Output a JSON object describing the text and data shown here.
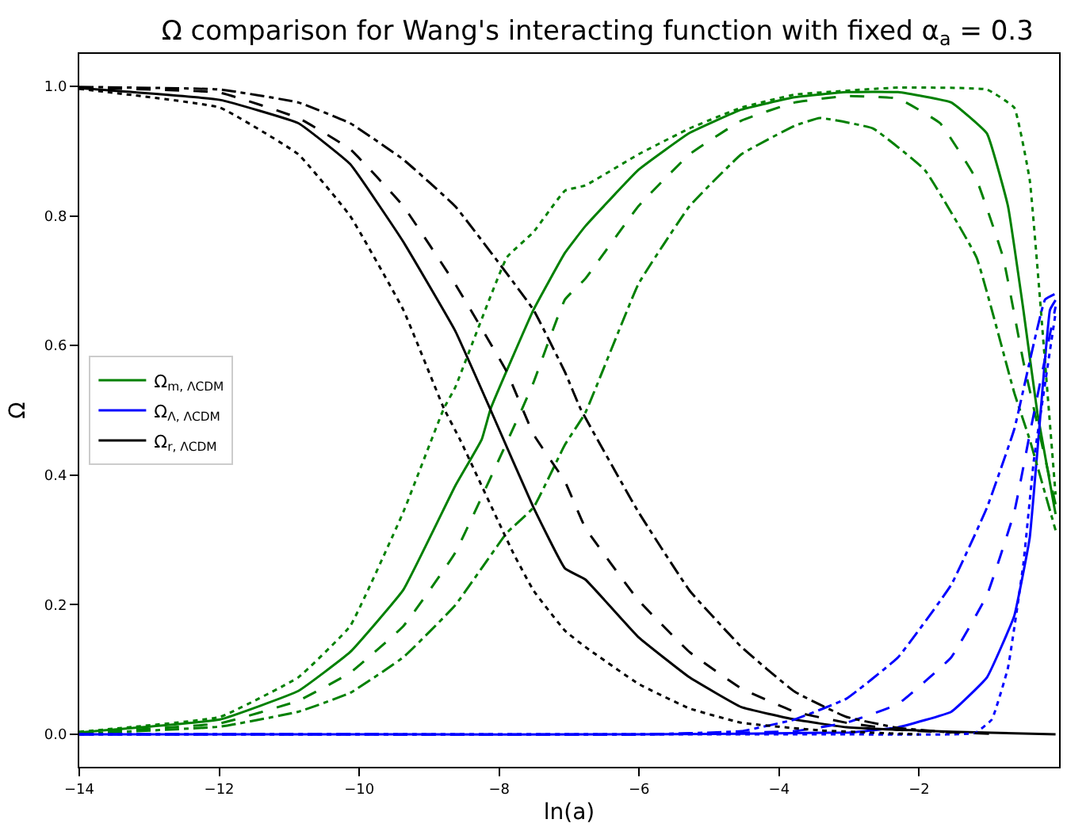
{
  "chart_data": {
    "type": "line",
    "title": "Ω comparison for Wang's interacting function with fixed α$_{a}$ = 0.3",
    "xlabel": "ln(a)",
    "ylabel": "Ω",
    "xlim": [
      -14,
      0
    ],
    "ylim": [
      -0.05,
      1.05
    ],
    "xticks": [
      {
        "value": -14,
        "label": "−14"
      },
      {
        "value": -12,
        "label": "−12"
      },
      {
        "value": -10,
        "label": "−10"
      },
      {
        "value": -8,
        "label": "−8"
      },
      {
        "value": -6,
        "label": "−6"
      },
      {
        "value": -4,
        "label": "−4"
      },
      {
        "value": -2,
        "label": "−2"
      }
    ],
    "yticks": [
      {
        "value": 0,
        "label": "0.0"
      },
      {
        "value": 0.2,
        "label": "0.2"
      },
      {
        "value": 0.4,
        "label": "0.4"
      },
      {
        "value": 0.6,
        "label": "0.6"
      },
      {
        "value": 0.8,
        "label": "0.8"
      },
      {
        "value": 1.0,
        "label": "1.0"
      }
    ],
    "legend": "left",
    "marker": "none",
    "series": [
      {
        "name": "Ω$_{m, ΛCDM}$",
        "color": "#008000",
        "line_style": "solid",
        "x": [
          -14,
          -11.99,
          -10.87,
          -10.13,
          -9.37,
          -8.63,
          -8.25,
          -8.12,
          -7.51,
          -7.06,
          -6.77,
          -6.01,
          -5.28,
          -4.54,
          -3.78,
          -3.04,
          -2.3,
          -1.54,
          -1.03,
          -0.73,
          -0.51,
          -0.31,
          -0.05
        ],
        "values": [
          0.003,
          0.023,
          0.067,
          0.127,
          0.223,
          0.383,
          0.455,
          0.503,
          0.655,
          0.743,
          0.784,
          0.871,
          0.928,
          0.964,
          0.983,
          0.991,
          0.991,
          0.975,
          0.927,
          0.815,
          0.655,
          0.496,
          0.34
        ]
      },
      {
        "name": "Ω$_{Λ, ΛCDM}$",
        "color": "#0000ff",
        "line_style": "solid",
        "x": [
          -14,
          -10,
          -6,
          -3.0,
          -2.3,
          -1.54,
          -1.03,
          -0.64,
          -0.42,
          -0.29,
          -0.13,
          -0.05
        ],
        "values": [
          0,
          0,
          0,
          0.003,
          0.011,
          0.035,
          0.088,
          0.183,
          0.303,
          0.463,
          0.655,
          0.67
        ]
      },
      {
        "name": "Ω$_{r, ΛCDM}$",
        "color": "#000000",
        "line_style": "solid",
        "x": [
          -14,
          -11.99,
          -10.87,
          -10.13,
          -9.37,
          -8.63,
          -8.12,
          -7.51,
          -7.06,
          -6.77,
          -6.01,
          -5.28,
          -4.54,
          -3.78,
          -3.04,
          -1.54,
          -0.05
        ],
        "values": [
          0.997,
          0.979,
          0.943,
          0.88,
          0.76,
          0.623,
          0.5,
          0.35,
          0.256,
          0.239,
          0.15,
          0.088,
          0.042,
          0.023,
          0.011,
          0.004,
          0
        ]
      },
      {
        "color": "#008000",
        "line_style": "dashed",
        "x": [
          -14,
          -11.99,
          -10.87,
          -10.13,
          -9.37,
          -8.63,
          -7.67,
          -7.51,
          -7.06,
          -6.77,
          -6.01,
          -5.28,
          -4.54,
          -3.78,
          -3.04,
          -2.3,
          -1.7,
          -1.18,
          -0.8,
          -0.51,
          -0.05
        ],
        "values": [
          0.002,
          0.017,
          0.052,
          0.095,
          0.167,
          0.28,
          0.503,
          0.543,
          0.671,
          0.703,
          0.815,
          0.895,
          0.947,
          0.975,
          0.985,
          0.981,
          0.943,
          0.856,
          0.736,
          0.575,
          0.355
        ]
      },
      {
        "color": "#008000",
        "line_style": "dashdot",
        "x": [
          -14,
          -11.99,
          -10.87,
          -10.13,
          -9.37,
          -8.63,
          -7.89,
          -7.51,
          -7.06,
          -6.77,
          -6.01,
          -5.28,
          -4.54,
          -3.78,
          -3.42,
          -2.66,
          -1.92,
          -1.18,
          -0.64,
          -0.42,
          -0.05
        ],
        "values": [
          0.001,
          0.012,
          0.035,
          0.064,
          0.119,
          0.199,
          0.311,
          0.35,
          0.447,
          0.496,
          0.695,
          0.815,
          0.895,
          0.939,
          0.951,
          0.935,
          0.871,
          0.736,
          0.527,
          0.455,
          0.315
        ]
      },
      {
        "color": "#008000",
        "line_style": "dotted",
        "x": [
          -14,
          -11.99,
          -10.87,
          -10.13,
          -9.37,
          -8.79,
          -8.63,
          -7.89,
          -7.51,
          -7.06,
          -6.77,
          -6.01,
          -5.28,
          -4.54,
          -3.78,
          -2.3,
          -1.03,
          -0.64,
          -0.42,
          -0.29,
          -0.05
        ],
        "values": [
          0.004,
          0.027,
          0.088,
          0.167,
          0.343,
          0.503,
          0.535,
          0.736,
          0.775,
          0.839,
          0.847,
          0.895,
          0.935,
          0.967,
          0.987,
          0.998,
          0.995,
          0.967,
          0.856,
          0.695,
          0.37
        ]
      },
      {
        "color": "#0000ff",
        "line_style": "dashed",
        "x": [
          -14,
          -10,
          -6,
          -3.78,
          -3.04,
          -2.3,
          -1.54,
          -1.03,
          -0.64,
          -0.42,
          -0.05
        ],
        "values": [
          0,
          0,
          0,
          0.005,
          0.018,
          0.047,
          0.119,
          0.215,
          0.343,
          0.463,
          0.66
        ]
      },
      {
        "color": "#0000ff",
        "line_style": "dashdot",
        "x": [
          -14,
          -10,
          -6,
          -4.54,
          -3.78,
          -3.04,
          -2.3,
          -1.54,
          -1.03,
          -0.64,
          -0.2,
          -0.05
        ],
        "values": [
          0,
          0,
          0,
          0.005,
          0.023,
          0.055,
          0.119,
          0.231,
          0.35,
          0.471,
          0.671,
          0.68
        ]
      },
      {
        "color": "#0000ff",
        "line_style": "dotted",
        "x": [
          -14,
          -10,
          -6,
          -3,
          -1.6,
          -1.2,
          -0.96,
          -0.73,
          -0.51,
          -0.36,
          -0.05
        ],
        "values": [
          0,
          0,
          0,
          0,
          0,
          0.002,
          0.023,
          0.103,
          0.263,
          0.423,
          0.65
        ]
      },
      {
        "color": "#000000",
        "line_style": "dashed",
        "x": [
          -14,
          -11.99,
          -10.87,
          -10.13,
          -9.37,
          -8.63,
          -7.89,
          -7.51,
          -7.06,
          -6.77,
          -6.01,
          -5.28,
          -4.54,
          -3.78,
          -3.04,
          -2.3,
          -1.0
        ],
        "values": [
          0.998,
          0.99,
          0.951,
          0.903,
          0.815,
          0.695,
          0.559,
          0.463,
          0.39,
          0.319,
          0.207,
          0.127,
          0.071,
          0.035,
          0.018,
          0.007,
          0.001
        ]
      },
      {
        "color": "#000000",
        "line_style": "dashdot",
        "x": [
          -14,
          -11.99,
          -10.87,
          -10.13,
          -9.37,
          -8.63,
          -7.89,
          -7.51,
          -7.06,
          -6.84,
          -6.01,
          -5.28,
          -4.54,
          -3.78,
          -3.04,
          -2.3,
          -1.54
        ],
        "values": [
          0.999,
          0.995,
          0.975,
          0.943,
          0.887,
          0.815,
          0.711,
          0.655,
          0.559,
          0.503,
          0.343,
          0.222,
          0.135,
          0.066,
          0.027,
          0.01,
          0.003
        ]
      },
      {
        "color": "#000000",
        "line_style": "dotted",
        "x": [
          -14,
          -11.99,
          -10.87,
          -10.13,
          -9.37,
          -8.79,
          -8.56,
          -7.8,
          -7.51,
          -7.06,
          -6.77,
          -6.01,
          -5.28,
          -4.54,
          -3.4,
          -2.0
        ],
        "values": [
          0.996,
          0.967,
          0.895,
          0.8,
          0.655,
          0.503,
          0.455,
          0.28,
          0.222,
          0.16,
          0.135,
          0.078,
          0.04,
          0.018,
          0.006,
          0
        ]
      }
    ]
  }
}
